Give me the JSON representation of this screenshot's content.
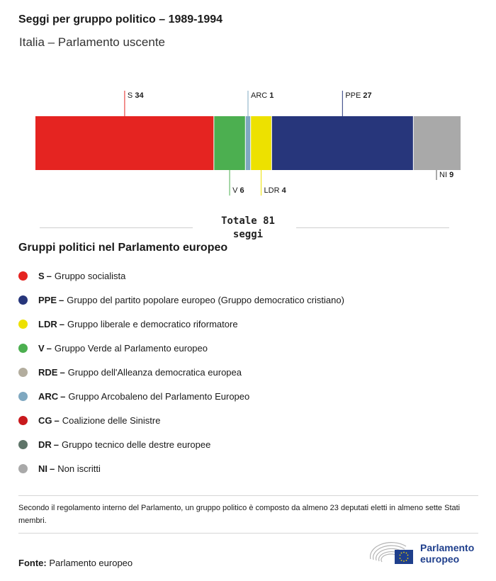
{
  "header": {
    "title": "Seggi per gruppo politico – 1989-1994",
    "subtitle": "Italia – Parlamento uscente"
  },
  "chart_data": {
    "type": "bar",
    "orientation": "horizontal-stacked",
    "total": 81,
    "segments": [
      {
        "code": "S",
        "value": 34,
        "color": "#e52421",
        "label_pos": "top"
      },
      {
        "code": "V",
        "value": 6,
        "color": "#4caf50",
        "label_pos": "bottom"
      },
      {
        "code": "ARC",
        "value": 1,
        "color": "#7fa8c0",
        "label_pos": "top"
      },
      {
        "code": "LDR",
        "value": 4,
        "color": "#ede100",
        "label_pos": "bottom"
      },
      {
        "code": "PPE",
        "value": 27,
        "color": "#27367b",
        "label_pos": "top"
      },
      {
        "code": "NI",
        "value": 9,
        "color": "#a9a9a9",
        "label_pos": "bottom"
      }
    ]
  },
  "total": {
    "line1": "Totale 81",
    "line2": "seggi"
  },
  "legend": {
    "title": "Gruppi politici nel Parlamento europeo",
    "items": [
      {
        "code": "S",
        "sep": "–",
        "name": "Gruppo socialista",
        "color": "#e52421"
      },
      {
        "code": "PPE",
        "sep": "–",
        "name": "Gruppo del partito popolare europeo (Gruppo democratico cristiano)",
        "color": "#27367b"
      },
      {
        "code": "LDR",
        "sep": "–",
        "name": "Gruppo liberale e democratico riformatore",
        "color": "#ede100"
      },
      {
        "code": "V",
        "sep": "–",
        "name": "Gruppo Verde al Parlamento europeo",
        "color": "#4caf50"
      },
      {
        "code": "RDE",
        "sep": "–",
        "name": "Gruppo dell'Alleanza democratica europea",
        "color": "#b3ad9e"
      },
      {
        "code": "ARC",
        "sep": "–",
        "name": "Gruppo Arcobaleno del Parlamento Europeo",
        "color": "#7fa8c0"
      },
      {
        "code": "CG",
        "sep": "–",
        "name": "Coalizione delle Sinistre",
        "color": "#c8191d"
      },
      {
        "code": "DR",
        "sep": "–",
        "name": "Gruppo tecnico delle destre europee",
        "color": "#5e7468"
      },
      {
        "code": "NI",
        "sep": "–",
        "name": "Non iscritti",
        "color": "#a9a9a9"
      }
    ]
  },
  "footer": {
    "note": "Secondo il regolamento interno del Parlamento, un gruppo politico è composto da almeno 23 deputati eletti in almeno sette Stati membri.",
    "source_label": "Fonte:",
    "source_value": "Parlamento europeo",
    "logo_line1": "Parlamento",
    "logo_line2": "europeo",
    "logo_icon": "eu-flag-hemicycle-icon"
  }
}
